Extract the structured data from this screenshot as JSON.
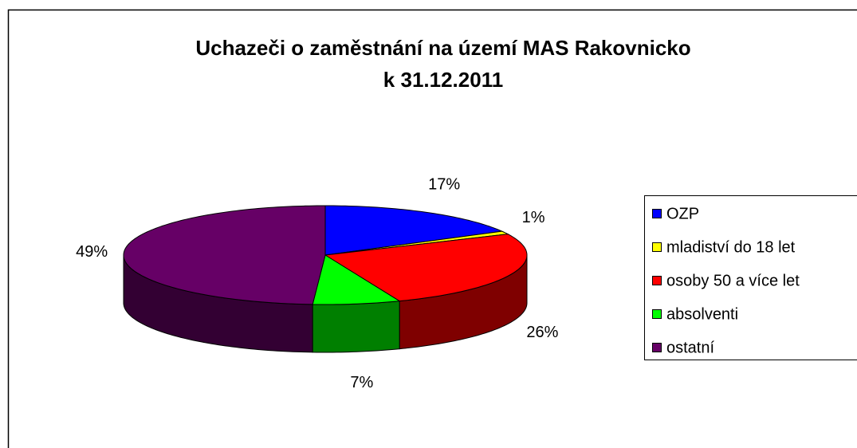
{
  "chart_data": {
    "type": "pie3d",
    "title": [
      "Uchazeči o zaměstnání na území MAS Rakovnicko",
      "k 31.12.2011"
    ],
    "categories": [
      "OZP",
      "mladiství do 18 let",
      "osoby 50 a více let",
      "absolventi",
      "ostatní"
    ],
    "values": [
      17,
      1,
      26,
      7,
      49
    ],
    "value_labels": [
      "17%",
      "1%",
      "26%",
      "7%",
      "49%"
    ],
    "colors": [
      "#0000ff",
      "#ffff00",
      "#ff0000",
      "#00ff00",
      "#660066"
    ],
    "legend": "right"
  }
}
